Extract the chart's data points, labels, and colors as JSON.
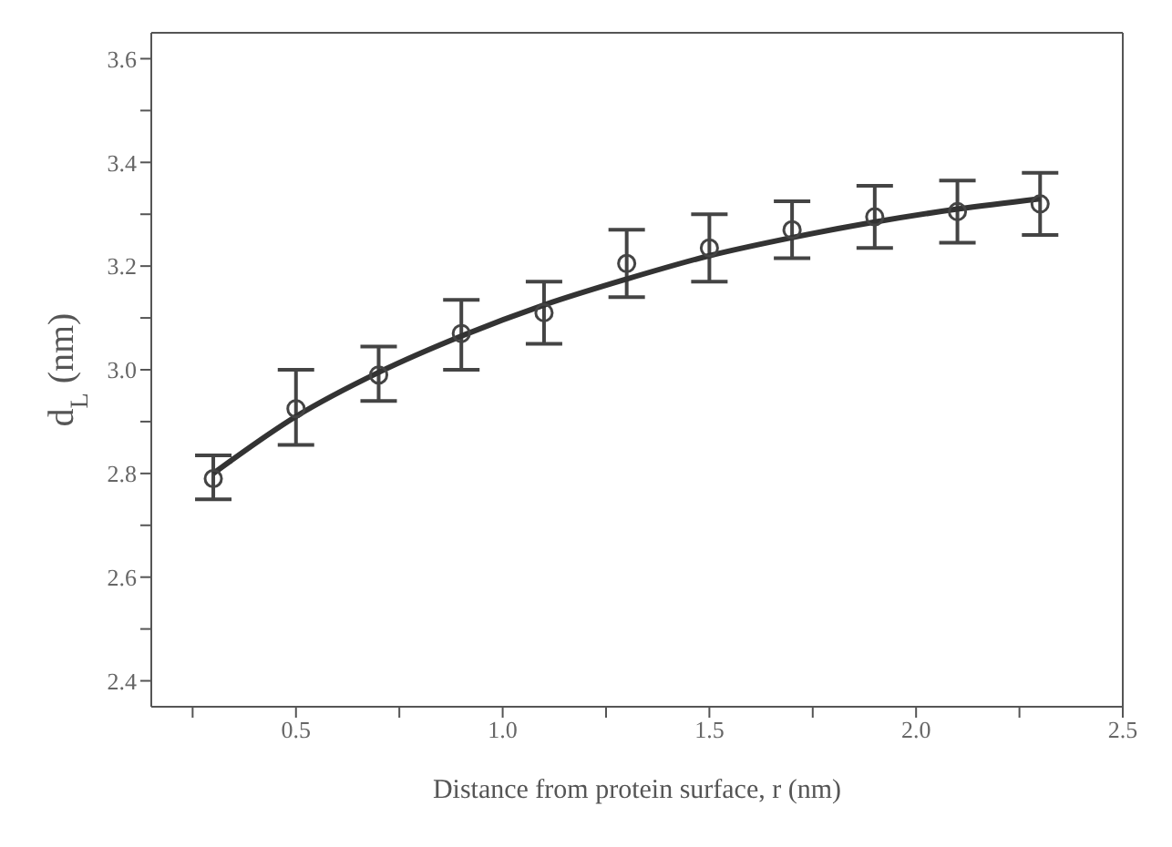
{
  "chart_data": {
    "type": "scatter",
    "xlabel": "Distance from protein surface, r (nm)",
    "ylabel": "d$_{L}$ (nm)",
    "xlim": [
      0.15,
      2.5
    ],
    "xticks": [
      {
        "value": 0.25,
        "label": null
      },
      0.5,
      {
        "value": 0.75,
        "label": null
      },
      {
        "value": 1.0,
        "label": "1.0"
      },
      {
        "value": 1.25,
        "label": null
      },
      1.5,
      {
        "value": 1.75,
        "label": null
      },
      {
        "value": 2.0,
        "label": "2.0"
      },
      {
        "value": 2.25,
        "label": null
      },
      2.5
    ],
    "ylim": [
      2.35,
      3.65
    ],
    "yticks": [
      2.4,
      {
        "value": 2.5,
        "label": null
      },
      2.6,
      {
        "value": 2.7,
        "label": null
      },
      2.8,
      {
        "value": 2.9,
        "label": null
      },
      {
        "value": 3.0,
        "label": "3.0"
      },
      {
        "value": 3.1,
        "label": null
      },
      3.2,
      {
        "value": 3.3,
        "label": null
      },
      3.4,
      {
        "value": 3.5,
        "label": null
      },
      3.6
    ],
    "series": [
      {
        "marker": "circle",
        "color": "#444444",
        "x": [
          0.3,
          0.5,
          0.7,
          0.9,
          1.1,
          1.3,
          1.5,
          1.7,
          1.9,
          2.1,
          2.3
        ],
        "values": [
          2.79,
          2.925,
          2.99,
          3.07,
          3.11,
          3.205,
          3.235,
          3.27,
          3.295,
          3.305,
          3.32
        ],
        "errors": [
          [
            2.75,
            2.835
          ],
          [
            2.855,
            3.0
          ],
          [
            2.94,
            3.045
          ],
          [
            3.0,
            3.135
          ],
          [
            3.05,
            3.17
          ],
          [
            3.14,
            3.27
          ],
          [
            3.17,
            3.3
          ],
          [
            3.215,
            3.325
          ],
          [
            3.235,
            3.355
          ],
          [
            3.245,
            3.365
          ],
          [
            3.26,
            3.38
          ]
        ]
      },
      {
        "type": "line",
        "marker": "none",
        "line_style": "solid",
        "color": "#333333",
        "x": [
          0.3,
          0.5,
          0.7,
          0.9,
          1.1,
          1.3,
          1.5,
          1.7,
          1.9,
          2.1,
          2.3
        ],
        "values": [
          2.8,
          2.91,
          2.995,
          3.065,
          3.125,
          3.175,
          3.22,
          3.255,
          3.285,
          3.31,
          3.33
        ]
      }
    ]
  }
}
